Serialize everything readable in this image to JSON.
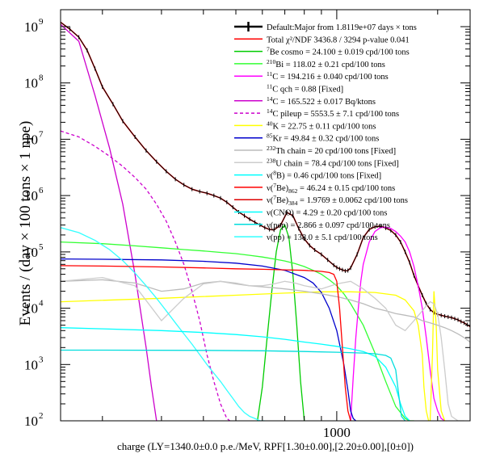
{
  "chart_data": {
    "type": "line",
    "xlabel": "charge (LY=1340.0±0.0 p.e./MeV, RPF[1.30±0.00],[2.20±0.00],[0±0])",
    "ylabel": "Events / (day × 100 tons × 1 npe)",
    "x_scale": "log",
    "y_scale": "log",
    "xlim": [
      150,
      2500
    ],
    "ylim": [
      100,
      2000000000
    ],
    "x_tick_labels": [
      {
        "value": 1000,
        "label": "1000"
      }
    ],
    "y_tick_labels": [
      {
        "exp": 2,
        "label": "10",
        "sup": "2"
      },
      {
        "exp": 3,
        "label": "10",
        "sup": "3"
      },
      {
        "exp": 4,
        "label": "10",
        "sup": "4"
      },
      {
        "exp": 5,
        "label": "10",
        "sup": "5"
      },
      {
        "exp": 6,
        "label": "10",
        "sup": "6"
      },
      {
        "exp": 7,
        "label": "10",
        "sup": "7"
      },
      {
        "exp": 8,
        "label": "10",
        "sup": "8"
      },
      {
        "exp": 9,
        "label": "10",
        "sup": "9"
      }
    ],
    "legend_placement": "top-right",
    "legend": [
      {
        "key": "data",
        "label": "Default:Major from 1.8119e+07 days × tons",
        "color": "#000000",
        "style": "data"
      },
      {
        "key": "total",
        "label": "Total χ²/NDF 3436.8 / 3294 p-value 0.041",
        "color": "#ff0000",
        "style": "solid"
      },
      {
        "key": "be7cosmo",
        "label": "7Be cosmo = 24.100 ± 0.019 cpd/100 tons",
        "color": "#00cc00",
        "style": "solid"
      },
      {
        "key": "bi210",
        "label": "210Bi = 118.02 ± 0.21 cpd/100 tons",
        "color": "#33ff33",
        "style": "solid"
      },
      {
        "key": "c11",
        "label": "11C = 194.216 ± 0.040 cpd/100 tons",
        "color": "#ff00ff",
        "style": "solid"
      },
      {
        "key": "c11qch",
        "label": "11C qch = 0.88  [Fixed]",
        "color": "",
        "style": "none"
      },
      {
        "key": "c14",
        "label": "14C = 165.522 ± 0.017 Bq/ktons",
        "color": "#cc00cc",
        "style": "solid"
      },
      {
        "key": "c14pileup",
        "label": "14C pileup = 5553.5 ± 7.1 cpd/100 tons",
        "color": "#cc00cc",
        "style": "dashed"
      },
      {
        "key": "k40",
        "label": "40K = 22.75 ± 0.11 cpd/100 tons",
        "color": "#ffff00",
        "style": "solid"
      },
      {
        "key": "kr85",
        "label": "85Kr = 49.84 ± 0.32 cpd/100 tons",
        "color": "#0000cc",
        "style": "solid"
      },
      {
        "key": "th232",
        "label": "232Th chain = 20 cpd/100 tons [Fixed]",
        "color": "#bbbbbb",
        "style": "solid"
      },
      {
        "key": "u238",
        "label": "238U chain = 78.4 cpd/100 tons [Fixed]",
        "color": "#cccccc",
        "style": "solid"
      },
      {
        "key": "nub8",
        "label": "ν(8B) = 0.46 cpd/100 tons [Fixed]",
        "color": "#00ffff",
        "style": "solid"
      },
      {
        "key": "nube862",
        "label": "ν(7Be)862 = 46.24 ± 0.15 cpd/100 tons",
        "color": "#ff0000",
        "style": "solid"
      },
      {
        "key": "nube384",
        "label": "ν(7Be)384 = 1.9769 ± 0.0062 cpd/100 tons",
        "color": "#dd0000",
        "style": "solid"
      },
      {
        "key": "nucno",
        "label": "ν(CNO) = 4.29 ± 0.20 cpd/100 tons",
        "color": "#00ffff",
        "style": "solid"
      },
      {
        "key": "nupep",
        "label": "ν(pep) = 2.866 ± 0.097 cpd/100 tons",
        "color": "#00dddd",
        "style": "solid"
      },
      {
        "key": "nupp",
        "label": "ν(pp) = 138.0 ± 5.1 cpd/100 tons",
        "color": "#33ffff",
        "style": "solid"
      }
    ],
    "series": [
      {
        "key": "total",
        "x": [
          150,
          160,
          170,
          180,
          190,
          200,
          215,
          230,
          250,
          270,
          290,
          310,
          330,
          350,
          370,
          390,
          410,
          430,
          450,
          470,
          490,
          510,
          530,
          550,
          570,
          590,
          610,
          630,
          650,
          680,
          710,
          740,
          770,
          800,
          830,
          860,
          900,
          940,
          980,
          1000,
          1020,
          1040,
          1060,
          1080,
          1100,
          1150,
          1200,
          1250,
          1300,
          1350,
          1400,
          1450,
          1500,
          1550,
          1600,
          1650,
          1700,
          1750,
          1800,
          1850,
          1900,
          1950,
          2000,
          2050,
          2100,
          2150,
          2200,
          2250,
          2300,
          2350,
          2400,
          2450,
          2500
        ],
        "y": [
          1200000000,
          900000000,
          650000000,
          380000000,
          180000000,
          85000000,
          42000000,
          21000000,
          11000000,
          6300000,
          4000000,
          2700000,
          1950000,
          1550000,
          1300000,
          1180000,
          1100000,
          1000000,
          900000,
          760000,
          620000,
          510000,
          440000,
          380000,
          335000,
          300000,
          270000,
          250000,
          245000,
          300000,
          500000,
          440000,
          260000,
          170000,
          130000,
          108000,
          90000,
          72000,
          58000,
          53000,
          50000,
          48000,
          46000,
          46500,
          52000,
          90000,
          180000,
          250000,
          280000,
          285000,
          265000,
          240000,
          200000,
          150000,
          100000,
          65000,
          38000,
          25000,
          17000,
          12000,
          9500,
          8300,
          7800,
          7500,
          7200,
          7000,
          6800,
          6500,
          6200,
          5800,
          5500,
          5100,
          4700
        ]
      },
      {
        "key": "data",
        "x": [
          150,
          160,
          170,
          180,
          190,
          200,
          215,
          230,
          250,
          270,
          290,
          310,
          330,
          350,
          370,
          390,
          410,
          430,
          450,
          470,
          490,
          510,
          530,
          550,
          570,
          590,
          610,
          630,
          650,
          680,
          710,
          740,
          770,
          800,
          830,
          860,
          900,
          940,
          980,
          1000,
          1020,
          1040,
          1060,
          1080,
          1100,
          1150,
          1200,
          1250,
          1300,
          1350,
          1400,
          1450,
          1500,
          1550,
          1600,
          1650,
          1700,
          1750,
          1800,
          1850,
          1900,
          1950,
          2000,
          2050,
          2100,
          2150,
          2200,
          2250,
          2300,
          2350,
          2400,
          2450,
          2500
        ],
        "y": [
          1200000000,
          900000000,
          650000000,
          380000000,
          180000000,
          85000000,
          42000000,
          21000000,
          11000000,
          6300000,
          4000000,
          2700000,
          1950000,
          1550000,
          1300000,
          1180000,
          1100000,
          1000000,
          900000,
          760000,
          620000,
          510000,
          440000,
          380000,
          335000,
          300000,
          270000,
          250000,
          245000,
          300000,
          500000,
          440000,
          260000,
          170000,
          130000,
          108000,
          90000,
          72000,
          58000,
          53000,
          50000,
          48000,
          46000,
          46500,
          52000,
          90000,
          180000,
          250000,
          280000,
          285000,
          265000,
          240000,
          200000,
          150000,
          100000,
          65000,
          38000,
          25000,
          17000,
          12000,
          9500,
          8300,
          7800,
          7500,
          7200,
          7000,
          6800,
          6500,
          6200,
          5800,
          5500,
          5100,
          4700
        ]
      },
      {
        "key": "c14",
        "x": [
          150,
          170,
          190,
          210,
          230,
          250,
          270,
          280,
          290
        ],
        "y": [
          1100000000,
          550000000,
          60000000,
          7000000,
          700000,
          40000,
          2000,
          400,
          100
        ]
      },
      {
        "key": "c14pileup",
        "x": [
          150,
          170,
          190,
          210,
          230,
          250,
          270,
          290,
          310,
          330,
          350,
          370,
          390,
          410,
          430,
          450,
          470,
          480
        ],
        "y": [
          14000000,
          11000000,
          7500000,
          5000000,
          3300000,
          2100000,
          1300000,
          700000,
          350000,
          150000,
          60000,
          20000,
          6000,
          1500,
          500,
          200,
          110,
          100
        ]
      },
      {
        "key": "be7cosmo",
        "x": [
          580,
          600,
          620,
          640,
          660,
          680,
          700,
          720,
          740,
          760,
          780,
          800
        ],
        "y": [
          100,
          400,
          3000,
          20000,
          100000,
          250000,
          300000,
          180000,
          40000,
          5000,
          500,
          100
        ]
      },
      {
        "key": "bi210",
        "x": [
          150,
          200,
          250,
          300,
          350,
          400,
          450,
          500,
          550,
          600,
          650,
          700,
          750,
          800,
          850,
          900,
          950,
          1000,
          1050,
          1100,
          1200,
          1300,
          1400,
          1500,
          1550,
          1600,
          1650,
          1700
        ],
        "y": [
          150000,
          140000,
          128000,
          118000,
          110000,
          104000,
          98000,
          93000,
          87000,
          81000,
          75000,
          69000,
          62000,
          55000,
          47000,
          40000,
          32000,
          25000,
          18000,
          12000,
          5000,
          1600,
          500,
          180,
          140,
          110,
          100,
          100
        ]
      },
      {
        "key": "c11",
        "x": [
          1100,
          1120,
          1140,
          1160,
          1180,
          1200,
          1250,
          1300,
          1350,
          1400,
          1450,
          1500,
          1550,
          1600,
          1650,
          1700,
          1750,
          1800,
          1850,
          1900,
          1950,
          2000,
          2050,
          2100
        ],
        "y": [
          100,
          600,
          3000,
          10000,
          30000,
          60000,
          150000,
          230000,
          270000,
          275000,
          260000,
          230000,
          190000,
          150000,
          100000,
          55000,
          25000,
          10000,
          3000,
          800,
          250,
          150,
          110,
          100
        ]
      },
      {
        "key": "k40",
        "x": [
          150,
          300,
          500,
          700,
          900,
          1100,
          1300,
          1500,
          1600,
          1700,
          1750,
          1800,
          1820,
          1850,
          1880,
          1900,
          1930,
          1950,
          1980,
          2000,
          2050,
          2100
        ],
        "y": [
          13000,
          15000,
          17000,
          18500,
          19500,
          19500,
          19000,
          17000,
          14000,
          9000,
          5000,
          1500,
          400,
          150,
          100,
          100,
          1500,
          20000,
          5000,
          800,
          150,
          100
        ]
      },
      {
        "key": "kr85",
        "x": [
          150,
          200,
          300,
          400,
          500,
          600,
          700,
          800,
          850,
          900,
          950,
          1000,
          1050,
          1080,
          1100,
          1120,
          1140
        ],
        "y": [
          75000,
          74000,
          72000,
          68000,
          63000,
          56000,
          47000,
          35000,
          28000,
          19000,
          10000,
          4000,
          1000,
          350,
          150,
          110,
          100
        ]
      },
      {
        "key": "th232",
        "x": [
          150,
          200,
          250,
          300,
          350,
          400,
          450,
          500,
          550,
          600,
          650,
          700,
          750,
          800,
          900,
          1000,
          1100,
          1200,
          1300,
          1400,
          1500,
          1600,
          1700,
          1800,
          1900,
          2000,
          2100,
          2200,
          2300,
          2400,
          2500
        ],
        "y": [
          30000,
          32000,
          28000,
          20000,
          22000,
          28000,
          30000,
          27000,
          25000,
          24000,
          23000,
          22000,
          21000,
          20000,
          18000,
          16000,
          14000,
          12000,
          10000,
          9000,
          8000,
          7500,
          7000,
          6000,
          5500,
          5000,
          4500,
          4000,
          3500,
          3000,
          2500
        ]
      },
      {
        "key": "u238",
        "x": [
          150,
          200,
          250,
          300,
          350,
          400,
          450,
          500,
          550,
          600,
          650,
          700,
          750,
          800,
          900,
          1000,
          1100,
          1200,
          1300,
          1400,
          1500,
          1600,
          1700,
          1800,
          1850,
          1900,
          1950,
          2000,
          2050,
          2100,
          2150,
          2200,
          2300,
          2400
        ],
        "y": [
          30000,
          35000,
          25000,
          6000,
          15000,
          27000,
          30000,
          28000,
          25000,
          25000,
          27000,
          30000,
          28000,
          25000,
          22000,
          27000,
          30000,
          22000,
          15000,
          10000,
          5000,
          4000,
          6000,
          9000,
          11000,
          13000,
          12000,
          8000,
          3000,
          800,
          200,
          120,
          100,
          100
        ]
      },
      {
        "key": "nupp",
        "x": [
          150,
          170,
          190,
          210,
          230,
          250,
          270,
          290,
          310,
          330,
          350,
          370,
          390,
          410,
          430,
          450,
          470,
          490,
          510,
          530,
          550,
          570,
          590,
          610
        ],
        "y": [
          270000,
          220000,
          160000,
          110000,
          70000,
          42000,
          25000,
          15000,
          9000,
          5500,
          3500,
          2300,
          1500,
          1000,
          700,
          500,
          350,
          250,
          180,
          140,
          120,
          110,
          100,
          100
        ]
      },
      {
        "key": "nucno",
        "x": [
          150,
          200,
          300,
          400,
          500,
          600,
          700,
          800,
          900,
          1000,
          1100,
          1200,
          1300,
          1400,
          1500,
          1550,
          1600,
          1650
        ],
        "y": [
          4500,
          4300,
          4000,
          3700,
          3400,
          3100,
          2800,
          2500,
          2300,
          2100,
          1900,
          1700,
          1400,
          900,
          400,
          200,
          120,
          100
        ]
      },
      {
        "key": "nupep",
        "x": [
          150,
          200,
          400,
          600,
          800,
          1000,
          1200,
          1300,
          1400,
          1450,
          1500,
          1530,
          1560,
          1600
        ],
        "y": [
          1800,
          1800,
          1780,
          1750,
          1700,
          1650,
          1600,
          1550,
          1450,
          1300,
          800,
          300,
          120,
          100
        ]
      },
      {
        "key": "nube862",
        "x": [
          150,
          200,
          300,
          400,
          500,
          600,
          700,
          800,
          850,
          900,
          950,
          980,
          1000,
          1020,
          1040,
          1060,
          1080,
          1100
        ],
        "y": [
          57000,
          56000,
          54000,
          52000,
          50000,
          49000,
          48000,
          47000,
          46000,
          45000,
          43000,
          40000,
          30000,
          10000,
          2000,
          400,
          150,
          100
        ]
      }
    ]
  }
}
